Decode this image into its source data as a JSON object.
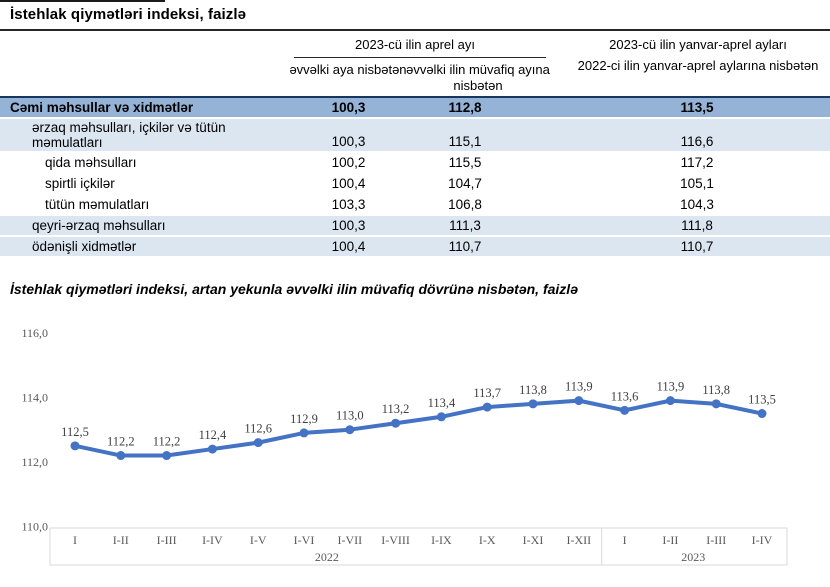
{
  "document": {
    "table_title": "İstehlak qiymətləri indeksi, faizlə",
    "chart_title": "İstehlak qiymətləri indeksi, artan yekunla əvvəlki ilin müvafiq dövrünə nisbətən, faizlə"
  },
  "table": {
    "col_group_header": "2023-cü ilin aprel ayı",
    "col_headers": [
      "əvvəlki aya nisbətən",
      "əvvəlki ilin müvafiq ayına nisbətən"
    ],
    "col4_header_line1": "2023-cü ilin yanvar-aprel ayları",
    "col4_header_line2": "2022-ci ilin yanvar-aprel aylarına nisbətən",
    "rows": [
      {
        "label": "Cəmi məhsullar və xidmətlər",
        "values": [
          "100,3",
          "112,8",
          "113,5"
        ],
        "style": "total"
      },
      {
        "label": "ərzaq məhsulları, içkilər və tütün məmulatları",
        "values": [
          "100,3",
          "115,1",
          "116,6"
        ],
        "style": "group",
        "tall": true
      },
      {
        "label": "qida məhsulları",
        "values": [
          "100,2",
          "115,5",
          "117,2"
        ],
        "style": "sub"
      },
      {
        "label": "spirtli içkilər",
        "values": [
          "100,4",
          "104,7",
          "105,1"
        ],
        "style": "sub"
      },
      {
        "label": "tütün məmulatları",
        "values": [
          "103,3",
          "106,8",
          "104,3"
        ],
        "style": "sub"
      },
      {
        "label": "qeyri-ərzaq məhsulları",
        "values": [
          "100,3",
          "111,3",
          "111,8"
        ],
        "style": "group"
      },
      {
        "label": "ödənişli xidmətlər",
        "values": [
          "100,4",
          "110,7",
          "110,7"
        ],
        "style": "group"
      }
    ]
  },
  "chart_data": {
    "type": "line",
    "title": "İstehlak qiymətləri indeksi, artan yekunla əvvəlki ilin müvafiq dövrünə nisbətən, faizlə",
    "x": [
      "I",
      "I-II",
      "I-III",
      "I-IV",
      "I-V",
      "I-VI",
      "I-VII",
      "I-VIII",
      "I-IX",
      "I-X",
      "I-XI",
      "I-XII",
      "I",
      "I-II",
      "I-III",
      "I-IV"
    ],
    "values": [
      112.5,
      112.2,
      112.2,
      112.4,
      112.6,
      112.9,
      113.0,
      113.2,
      113.4,
      113.7,
      113.8,
      113.9,
      113.6,
      113.9,
      113.8,
      113.5
    ],
    "point_labels": [
      "112,5",
      "112,2",
      "112,2",
      "112,4",
      "112,6",
      "112,9",
      "113,0",
      "113,2",
      "113,4",
      "113,7",
      "113,8",
      "113,9",
      "113,6",
      "113,9",
      "113,8",
      "113,5"
    ],
    "year_groups": [
      {
        "label": "2022",
        "count": 12
      },
      {
        "label": "2023",
        "count": 4
      }
    ],
    "y_ticks": [
      116.0,
      114.0,
      112.0,
      110.0
    ],
    "y_tick_labels": [
      "116,0",
      "114,0",
      "112,0",
      "110,0"
    ],
    "ylim": [
      110,
      116
    ],
    "grid": false,
    "legend": false,
    "line_color": "#4472C4"
  },
  "colors": {
    "total_row_bg": "#95B3D7",
    "group_row_bg": "#DCE6F1",
    "total_row_top_border": "#17375E",
    "line": "#4472C4",
    "axis_border": "#D9D9D9",
    "axis_text": "#595959"
  }
}
